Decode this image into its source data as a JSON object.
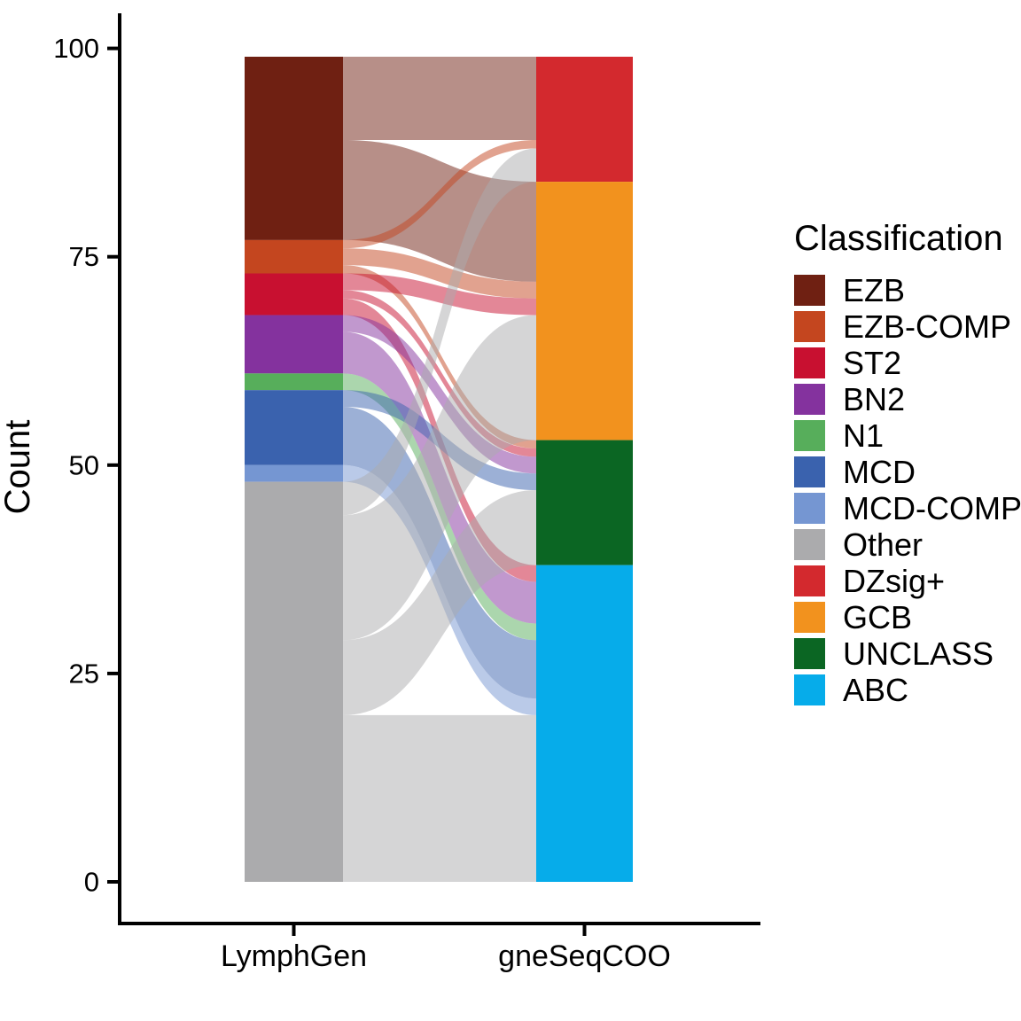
{
  "chart_data": {
    "type": "alluvial",
    "title": "",
    "ylabel": "Count",
    "ylim": [
      0,
      100
    ],
    "y_ticks": [
      0,
      25,
      50,
      75,
      100
    ],
    "axes": [
      "LymphGen",
      "gneSeqCOO"
    ],
    "total": 99,
    "grid": false,
    "legend_position": "right",
    "legend": {
      "title": "Classification"
    },
    "classes": [
      {
        "name": "EZB",
        "color": "#6F2012"
      },
      {
        "name": "EZB-COMP",
        "color": "#C4461F"
      },
      {
        "name": "ST2",
        "color": "#C81030"
      },
      {
        "name": "BN2",
        "color": "#84329E"
      },
      {
        "name": "N1",
        "color": "#57AE5B"
      },
      {
        "name": "MCD",
        "color": "#3A62AE"
      },
      {
        "name": "MCD-COMP",
        "color": "#7596D2"
      },
      {
        "name": "Other",
        "color": "#ABABAD"
      },
      {
        "name": "DZsig+",
        "color": "#D3292E"
      },
      {
        "name": "GCB",
        "color": "#F2921E"
      },
      {
        "name": "UNCLASS",
        "color": "#0B6623"
      },
      {
        "name": "ABC",
        "color": "#06ACEA"
      }
    ],
    "left_strata": [
      {
        "name": "EZB",
        "count": 22
      },
      {
        "name": "EZB-COMP",
        "count": 4
      },
      {
        "name": "ST2",
        "count": 5
      },
      {
        "name": "BN2",
        "count": 7
      },
      {
        "name": "N1",
        "count": 2
      },
      {
        "name": "MCD",
        "count": 9
      },
      {
        "name": "MCD-COMP",
        "count": 2
      },
      {
        "name": "Other",
        "count": 48
      }
    ],
    "right_strata": [
      {
        "name": "DZsig+",
        "count": 15
      },
      {
        "name": "GCB",
        "count": 31
      },
      {
        "name": "UNCLASS",
        "count": 15
      },
      {
        "name": "ABC",
        "count": 38
      }
    ],
    "flows": [
      {
        "from": "EZB",
        "to": "DZsig+",
        "count": 10
      },
      {
        "from": "EZB",
        "to": "GCB",
        "count": 12
      },
      {
        "from": "EZB-COMP",
        "to": "DZsig+",
        "count": 1
      },
      {
        "from": "EZB-COMP",
        "to": "GCB",
        "count": 2
      },
      {
        "from": "EZB-COMP",
        "to": "UNCLASS",
        "count": 1
      },
      {
        "from": "ST2",
        "to": "GCB",
        "count": 2
      },
      {
        "from": "ST2",
        "to": "UNCLASS",
        "count": 1
      },
      {
        "from": "ST2",
        "to": "ABC",
        "count": 2
      },
      {
        "from": "BN2",
        "to": "UNCLASS",
        "count": 2
      },
      {
        "from": "BN2",
        "to": "ABC",
        "count": 5
      },
      {
        "from": "N1",
        "to": "ABC",
        "count": 2
      },
      {
        "from": "MCD",
        "to": "UNCLASS",
        "count": 2
      },
      {
        "from": "MCD",
        "to": "ABC",
        "count": 7
      },
      {
        "from": "MCD-COMP",
        "to": "ABC",
        "count": 2
      },
      {
        "from": "Other",
        "to": "DZsig+",
        "count": 4
      },
      {
        "from": "Other",
        "to": "GCB",
        "count": 15
      },
      {
        "from": "Other",
        "to": "UNCLASS",
        "count": 9
      },
      {
        "from": "Other",
        "to": "ABC",
        "count": 20
      }
    ],
    "flow_opacity": 0.5
  }
}
